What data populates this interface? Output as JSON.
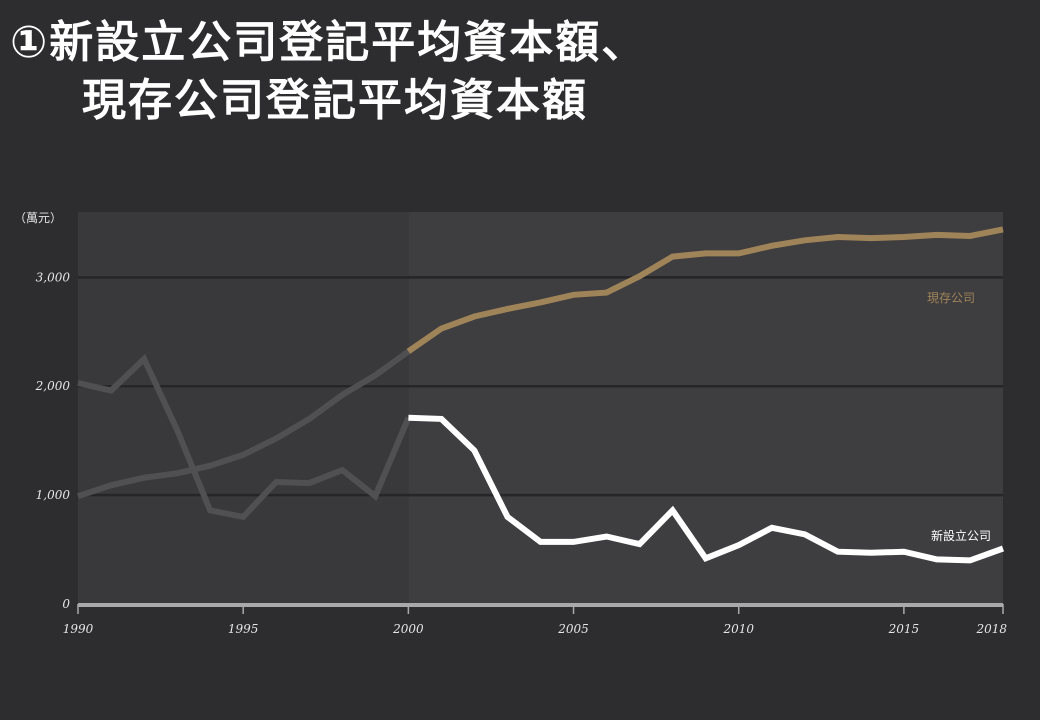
{
  "title": {
    "line1": "①新設立公司登記平均資本額、",
    "line2": "現存公司登記平均資本額"
  },
  "chart_data": {
    "type": "line",
    "ylabel": "（萬元）",
    "ylim": [
      0,
      3600
    ],
    "y_ticks": [
      0,
      1000,
      2000,
      3000
    ],
    "y_tick_labels": [
      "0",
      "1,000",
      "2,000",
      "3,000"
    ],
    "xlim": [
      1990,
      2018
    ],
    "x_ticks": [
      1990,
      1995,
      2000,
      2005,
      2010,
      2015,
      2018
    ],
    "x_tick_labels": [
      "1990",
      "1995",
      "2000",
      "2005",
      "2010",
      "2015",
      "2018"
    ],
    "highlight_from": 2000,
    "grid": true,
    "x": [
      1990,
      1991,
      1992,
      1993,
      1994,
      1995,
      1996,
      1997,
      1998,
      1999,
      2000,
      2001,
      2002,
      2003,
      2004,
      2005,
      2006,
      2007,
      2008,
      2009,
      2010,
      2011,
      2012,
      2013,
      2014,
      2015,
      2016,
      2017,
      2018
    ],
    "series": [
      {
        "name": "現存公司",
        "color": "#a08459",
        "label_color": "#a08459",
        "values": [
          990,
          1090,
          1160,
          1200,
          1270,
          1370,
          1520,
          1700,
          1920,
          2100,
          2320,
          2530,
          2640,
          2710,
          2770,
          2840,
          2860,
          3010,
          3190,
          3220,
          3220,
          3290,
          3340,
          3370,
          3360,
          3370,
          3390,
          3380,
          3440
        ]
      },
      {
        "name": "新設立公司",
        "color": "#ffffff",
        "label_color": "#ffffff",
        "values": [
          2030,
          1960,
          2250,
          1600,
          860,
          800,
          1120,
          1110,
          1230,
          990,
          1710,
          1700,
          1410,
          800,
          570,
          570,
          620,
          550,
          860,
          420,
          540,
          700,
          640,
          480,
          470,
          480,
          410,
          400,
          510
        ]
      }
    ],
    "pre_highlight_color": "#505052"
  }
}
